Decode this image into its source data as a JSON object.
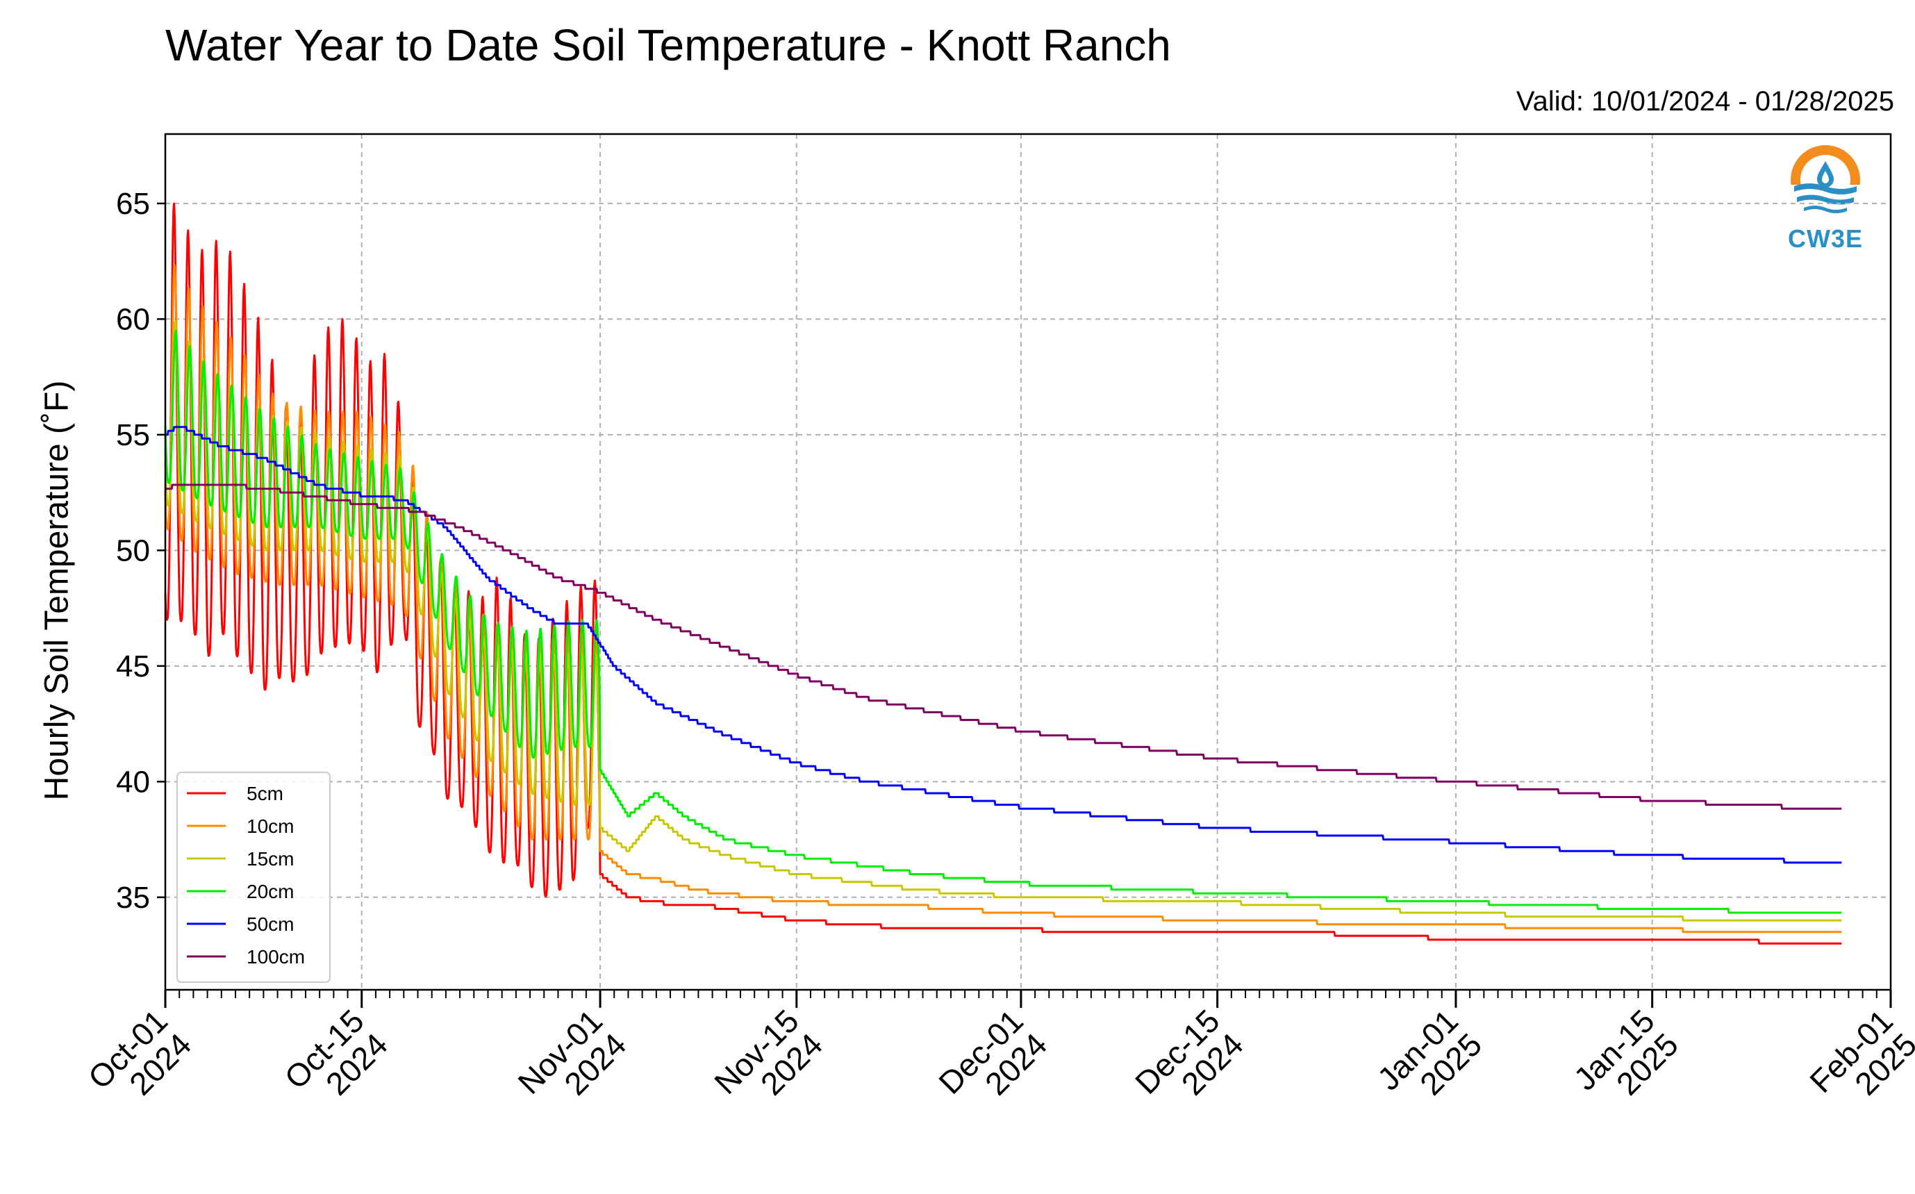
{
  "chart_data": {
    "type": "line",
    "title": "Water Year to Date Soil Temperature - Knott Ranch",
    "subtitle": "Valid: 10/01/2024 - 01/28/2025",
    "ylabel": "Hourly Soil Temperature (˚F)",
    "xlabel": "",
    "ylim": [
      31,
      68
    ],
    "xlim": [
      "2024-10-01",
      "2025-02-01"
    ],
    "yticks": [
      35,
      40,
      45,
      50,
      55,
      60,
      65
    ],
    "xticks": [
      {
        "date": "2024-10-01",
        "label": [
          "Oct-01",
          "2024"
        ]
      },
      {
        "date": "2024-10-15",
        "label": [
          "Oct-15",
          "2024"
        ]
      },
      {
        "date": "2024-11-01",
        "label": [
          "Nov-01",
          "2024"
        ]
      },
      {
        "date": "2024-11-15",
        "label": [
          "Nov-15",
          "2024"
        ]
      },
      {
        "date": "2024-12-01",
        "label": [
          "Dec-01",
          "2024"
        ]
      },
      {
        "date": "2024-12-15",
        "label": [
          "Dec-15",
          "2024"
        ]
      },
      {
        "date": "2025-01-01",
        "label": [
          "Jan-01",
          "2025"
        ]
      },
      {
        "date": "2025-01-15",
        "label": [
          "Jan-15",
          "2025"
        ]
      },
      {
        "date": "2025-02-01",
        "label": [
          "Feb-01",
          "2025"
        ]
      }
    ],
    "grid": true,
    "legend_position": "lower-left",
    "series": [
      {
        "name": "5cm",
        "color": "#ff0000",
        "daily": [
          {
            "date": "2024-10-01",
            "min": 47.0,
            "max": 66.0
          },
          {
            "date": "2024-10-02",
            "min": 47.0,
            "max": 64.4
          },
          {
            "date": "2024-10-03",
            "min": 46.5,
            "max": 63.5
          },
          {
            "date": "2024-10-04",
            "min": 45.3,
            "max": 62.7
          },
          {
            "date": "2024-10-05",
            "min": 46.5,
            "max": 63.8
          },
          {
            "date": "2024-10-06",
            "min": 45.5,
            "max": 62.4
          },
          {
            "date": "2024-10-07",
            "min": 44.8,
            "max": 61.0
          },
          {
            "date": "2024-10-08",
            "min": 43.9,
            "max": 59.5
          },
          {
            "date": "2024-10-09",
            "min": 44.5,
            "max": 57.5
          },
          {
            "date": "2024-10-10",
            "min": 44.3,
            "max": 55.5
          },
          {
            "date": "2024-10-11",
            "min": 44.5,
            "max": 56.0
          },
          {
            "date": "2024-10-12",
            "min": 45.5,
            "max": 59.9
          },
          {
            "date": "2024-10-13",
            "min": 45.8,
            "max": 59.5
          },
          {
            "date": "2024-10-14",
            "min": 46.0,
            "max": 60.3
          },
          {
            "date": "2024-10-15",
            "min": 45.8,
            "max": 58.5
          },
          {
            "date": "2024-10-16",
            "min": 44.6,
            "max": 58.0
          },
          {
            "date": "2024-10-17",
            "min": 45.8,
            "max": 58.8
          },
          {
            "date": "2024-10-18",
            "min": 46.8,
            "max": 55.0
          },
          {
            "date": "2024-10-19",
            "min": 42.5,
            "max": 52.0
          },
          {
            "date": "2024-10-20",
            "min": 41.5,
            "max": 50.5
          },
          {
            "date": "2024-10-21",
            "min": 39.3,
            "max": 49.0
          },
          {
            "date": "2024-10-22",
            "min": 39.0,
            "max": 47.8
          },
          {
            "date": "2024-10-23",
            "min": 38.2,
            "max": 48.5
          },
          {
            "date": "2024-10-24",
            "min": 37.0,
            "max": 47.7
          },
          {
            "date": "2024-10-25",
            "min": 36.5,
            "max": 49.5
          },
          {
            "date": "2024-10-26",
            "min": 36.5,
            "max": 47.0
          },
          {
            "date": "2024-10-27",
            "min": 35.5,
            "max": 46.0
          },
          {
            "date": "2024-10-28",
            "min": 35.0,
            "max": 46.3
          },
          {
            "date": "2024-10-29",
            "min": 35.3,
            "max": 47.5
          },
          {
            "date": "2024-10-30",
            "min": 35.5,
            "max": 48.0
          },
          {
            "date": "2024-10-31",
            "min": 38.0,
            "max": 48.7
          }
        ],
        "hourly_after": [
          {
            "date": "2024-11-01",
            "value": 36.0
          },
          {
            "date": "2024-11-03",
            "value": 35.0
          },
          {
            "date": "2024-11-06",
            "value": 34.7
          },
          {
            "date": "2024-11-08",
            "value": 34.7
          },
          {
            "date": "2024-11-12",
            "value": 34.3
          },
          {
            "date": "2024-11-15",
            "value": 34.0
          },
          {
            "date": "2024-11-20",
            "value": 33.8
          },
          {
            "date": "2024-11-24",
            "value": 33.6
          },
          {
            "date": "2024-12-01",
            "value": 33.6
          },
          {
            "date": "2024-12-10",
            "value": 33.5
          },
          {
            "date": "2024-12-20",
            "value": 33.5
          },
          {
            "date": "2025-01-01",
            "value": 33.2
          },
          {
            "date": "2025-01-15",
            "value": 33.2
          },
          {
            "date": "2025-01-28",
            "value": 33.0
          }
        ]
      },
      {
        "name": "10cm",
        "color": "#ff8c00",
        "daily": [
          {
            "date": "2024-10-01",
            "min": 51.0,
            "max": 63.0
          },
          {
            "date": "2024-10-03",
            "min": 50.0,
            "max": 61.0
          },
          {
            "date": "2024-10-06",
            "min": 49.0,
            "max": 59.0
          },
          {
            "date": "2024-10-09",
            "min": 48.5,
            "max": 56.5
          },
          {
            "date": "2024-10-12",
            "min": 48.5,
            "max": 56.0
          },
          {
            "date": "2024-10-15",
            "min": 48.0,
            "max": 56.0
          },
          {
            "date": "2024-10-18",
            "min": 47.5,
            "max": 55.0
          },
          {
            "date": "2024-10-21",
            "min": 42.0,
            "max": 49.0
          },
          {
            "date": "2024-10-24",
            "min": 39.5,
            "max": 47.0
          },
          {
            "date": "2024-10-27",
            "min": 37.5,
            "max": 46.0
          },
          {
            "date": "2024-10-30",
            "min": 37.5,
            "max": 46.5
          }
        ],
        "hourly_after": [
          {
            "date": "2024-11-01",
            "value": 37.0
          },
          {
            "date": "2024-11-03",
            "value": 36.0
          },
          {
            "date": "2024-11-05",
            "value": 35.8
          },
          {
            "date": "2024-11-08",
            "value": 35.3
          },
          {
            "date": "2024-11-12",
            "value": 35.0
          },
          {
            "date": "2024-11-15",
            "value": 34.8
          },
          {
            "date": "2024-11-24",
            "value": 34.6
          },
          {
            "date": "2024-12-01",
            "value": 34.3
          },
          {
            "date": "2024-12-15",
            "value": 34.0
          },
          {
            "date": "2025-01-01",
            "value": 33.8
          },
          {
            "date": "2025-01-15",
            "value": 33.6
          },
          {
            "date": "2025-01-28",
            "value": 33.5
          }
        ]
      },
      {
        "name": "15cm",
        "color": "#c8c800",
        "daily": [
          {
            "date": "2024-10-01",
            "min": 52.0,
            "max": 60.5
          },
          {
            "date": "2024-10-04",
            "min": 51.0,
            "max": 58.0
          },
          {
            "date": "2024-10-08",
            "min": 50.0,
            "max": 56.0
          },
          {
            "date": "2024-10-12",
            "min": 50.0,
            "max": 55.0
          },
          {
            "date": "2024-10-15",
            "min": 49.5,
            "max": 54.5
          },
          {
            "date": "2024-10-18",
            "min": 49.5,
            "max": 54.0
          },
          {
            "date": "2024-10-21",
            "min": 44.0,
            "max": 48.5
          },
          {
            "date": "2024-10-24",
            "min": 41.0,
            "max": 46.0
          },
          {
            "date": "2024-10-27",
            "min": 39.5,
            "max": 45.5
          },
          {
            "date": "2024-10-30",
            "min": 39.0,
            "max": 45.5
          }
        ],
        "hourly_after": [
          {
            "date": "2024-11-01",
            "value": 38.0
          },
          {
            "date": "2024-11-03",
            "value": 37.0
          },
          {
            "date": "2024-11-05",
            "value": 38.5
          },
          {
            "date": "2024-11-07",
            "value": 37.5
          },
          {
            "date": "2024-11-10",
            "value": 36.8
          },
          {
            "date": "2024-11-15",
            "value": 36.0
          },
          {
            "date": "2024-11-24",
            "value": 35.3
          },
          {
            "date": "2024-12-01",
            "value": 35.0
          },
          {
            "date": "2024-12-15",
            "value": 34.8
          },
          {
            "date": "2025-01-01",
            "value": 34.3
          },
          {
            "date": "2025-01-15",
            "value": 34.1
          },
          {
            "date": "2025-01-28",
            "value": 34.0
          }
        ]
      },
      {
        "name": "20cm",
        "color": "#00ee00",
        "daily": [
          {
            "date": "2024-10-01",
            "min": 53.0,
            "max": 60.0
          },
          {
            "date": "2024-10-04",
            "min": 52.0,
            "max": 58.0
          },
          {
            "date": "2024-10-08",
            "min": 51.0,
            "max": 56.0
          },
          {
            "date": "2024-10-12",
            "min": 51.0,
            "max": 54.5
          },
          {
            "date": "2024-10-15",
            "min": 50.5,
            "max": 54.0
          },
          {
            "date": "2024-10-18",
            "min": 50.5,
            "max": 53.5
          },
          {
            "date": "2024-10-21",
            "min": 46.0,
            "max": 49.5
          },
          {
            "date": "2024-10-24",
            "min": 43.0,
            "max": 47.0
          },
          {
            "date": "2024-10-27",
            "min": 41.0,
            "max": 46.5
          },
          {
            "date": "2024-10-30",
            "min": 41.5,
            "max": 47.0
          }
        ],
        "hourly_after": [
          {
            "date": "2024-11-01",
            "value": 40.5
          },
          {
            "date": "2024-11-03",
            "value": 38.5
          },
          {
            "date": "2024-11-05",
            "value": 39.5
          },
          {
            "date": "2024-11-07",
            "value": 38.5
          },
          {
            "date": "2024-11-10",
            "value": 37.5
          },
          {
            "date": "2024-11-15",
            "value": 36.8
          },
          {
            "date": "2024-11-24",
            "value": 36.0
          },
          {
            "date": "2024-12-01",
            "value": 35.6
          },
          {
            "date": "2024-12-15",
            "value": 35.2
          },
          {
            "date": "2025-01-01",
            "value": 34.8
          },
          {
            "date": "2025-01-15",
            "value": 34.5
          },
          {
            "date": "2025-01-28",
            "value": 34.3
          }
        ]
      },
      {
        "name": "50cm",
        "color": "#0000ff",
        "points": [
          {
            "date": "2024-10-01",
            "value": 55.0
          },
          {
            "date": "2024-10-02",
            "value": 55.4
          },
          {
            "date": "2024-10-05",
            "value": 54.5
          },
          {
            "date": "2024-10-08",
            "value": 54.0
          },
          {
            "date": "2024-10-12",
            "value": 52.8
          },
          {
            "date": "2024-10-15",
            "value": 52.4
          },
          {
            "date": "2024-10-18",
            "value": 52.2
          },
          {
            "date": "2024-10-21",
            "value": 51.0
          },
          {
            "date": "2024-10-24",
            "value": 48.8
          },
          {
            "date": "2024-10-27",
            "value": 47.5
          },
          {
            "date": "2024-10-29",
            "value": 46.8
          },
          {
            "date": "2024-10-31",
            "value": 46.9
          },
          {
            "date": "2024-11-02",
            "value": 45.0
          },
          {
            "date": "2024-11-05",
            "value": 43.4
          },
          {
            "date": "2024-11-10",
            "value": 42.0
          },
          {
            "date": "2024-11-15",
            "value": 40.8
          },
          {
            "date": "2024-11-20",
            "value": 40.0
          },
          {
            "date": "2024-12-01",
            "value": 38.9
          },
          {
            "date": "2024-12-15",
            "value": 38.0
          },
          {
            "date": "2025-01-01",
            "value": 37.4
          },
          {
            "date": "2025-01-15",
            "value": 36.8
          },
          {
            "date": "2025-01-28",
            "value": 36.5
          }
        ]
      },
      {
        "name": "100cm",
        "color": "#800060",
        "points": [
          {
            "date": "2024-10-01",
            "value": 52.7
          },
          {
            "date": "2024-10-03",
            "value": 52.9
          },
          {
            "date": "2024-10-08",
            "value": 52.7
          },
          {
            "date": "2024-10-12",
            "value": 52.3
          },
          {
            "date": "2024-10-15",
            "value": 52.0
          },
          {
            "date": "2024-10-19",
            "value": 51.7
          },
          {
            "date": "2024-10-22",
            "value": 51.0
          },
          {
            "date": "2024-10-26",
            "value": 49.8
          },
          {
            "date": "2024-10-29",
            "value": 48.8
          },
          {
            "date": "2024-11-01",
            "value": 48.2
          },
          {
            "date": "2024-11-05",
            "value": 47.0
          },
          {
            "date": "2024-11-10",
            "value": 45.8
          },
          {
            "date": "2024-11-15",
            "value": 44.6
          },
          {
            "date": "2024-11-20",
            "value": 43.6
          },
          {
            "date": "2024-12-01",
            "value": 42.2
          },
          {
            "date": "2024-12-15",
            "value": 41.0
          },
          {
            "date": "2025-01-01",
            "value": 40.0
          },
          {
            "date": "2025-01-15",
            "value": 39.2
          },
          {
            "date": "2025-01-28",
            "value": 38.8
          }
        ]
      }
    ]
  },
  "logo": {
    "text": "CW3E",
    "colors": {
      "sun": "#f28c1c",
      "water": "#2a8fc4"
    }
  }
}
